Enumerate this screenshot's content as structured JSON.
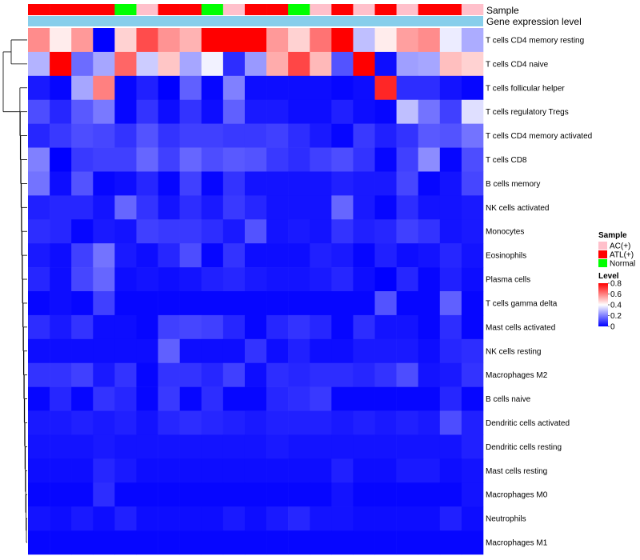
{
  "chart_data": {
    "type": "heatmap",
    "annotation_titles": {
      "sample": "Sample",
      "expression": "Gene expression level"
    },
    "column_samples": [
      "ATL(+)",
      "ATL(+)",
      "ATL(+)",
      "ATL(+)",
      "Normal",
      "AC(+)",
      "ATL(+)",
      "ATL(+)",
      "Normal",
      "AC(+)",
      "ATL(+)",
      "ATL(+)",
      "Normal",
      "AC(+)",
      "ATL(+)",
      "AC(+)",
      "ATL(+)",
      "AC(+)",
      "ATL(+)",
      "ATL(+)",
      "AC(+)"
    ],
    "rows": [
      "T cells CD4 memory resting",
      "T cells CD4 naive",
      "T cells follicular helper",
      "T cells regulatory  Tregs",
      "T cells CD4 memory activated",
      "T cells CD8",
      "B cells memory",
      "NK cells activated",
      "Monocytes",
      "Eosinophils",
      "Plasma cells",
      "T cells gamma delta",
      "Mast cells activated",
      "NK cells resting",
      "Macrophages M2",
      "B cells naive",
      "Dendritic cells activated",
      "Dendritic cells resting",
      "Mast cells resting",
      "Macrophages M0",
      "Neutrophils",
      "Macrophages M1"
    ],
    "values": [
      [
        0.58,
        0.43,
        0.56,
        0.0,
        0.47,
        0.68,
        0.57,
        0.52,
        0.8,
        0.8,
        0.8,
        0.56,
        0.47,
        0.62,
        0.8,
        0.3,
        0.43,
        0.55,
        0.58,
        0.37,
        0.27
      ],
      [
        0.28,
        0.8,
        0.17,
        0.26,
        0.64,
        0.32,
        0.49,
        0.26,
        0.38,
        0.07,
        0.24,
        0.53,
        0.69,
        0.51,
        0.13,
        0.8,
        0.02,
        0.25,
        0.26,
        0.5,
        0.47
      ],
      [
        0.04,
        0.01,
        0.26,
        0.6,
        0.01,
        0.05,
        0.0,
        0.15,
        0.01,
        0.2,
        0.02,
        0.02,
        0.02,
        0.02,
        0.01,
        0.02,
        0.74,
        0.07,
        0.07,
        0.03,
        0.01
      ],
      [
        0.12,
        0.06,
        0.14,
        0.19,
        0.01,
        0.08,
        0.02,
        0.08,
        0.02,
        0.15,
        0.04,
        0.04,
        0.02,
        0.02,
        0.05,
        0.02,
        0.01,
        0.3,
        0.18,
        0.1,
        0.35
      ],
      [
        0.06,
        0.09,
        0.12,
        0.11,
        0.08,
        0.13,
        0.08,
        0.1,
        0.1,
        0.09,
        0.09,
        0.1,
        0.07,
        0.04,
        0.01,
        0.09,
        0.05,
        0.08,
        0.14,
        0.13,
        0.18
      ],
      [
        0.2,
        0.0,
        0.09,
        0.1,
        0.1,
        0.16,
        0.1,
        0.16,
        0.12,
        0.14,
        0.13,
        0.09,
        0.07,
        0.1,
        0.12,
        0.08,
        0.01,
        0.1,
        0.22,
        0.01,
        0.12
      ],
      [
        0.18,
        0.02,
        0.13,
        0.01,
        0.02,
        0.06,
        0.01,
        0.1,
        0.01,
        0.08,
        0.03,
        0.03,
        0.03,
        0.03,
        0.05,
        0.04,
        0.04,
        0.11,
        0.01,
        0.03,
        0.11
      ],
      [
        0.05,
        0.06,
        0.06,
        0.03,
        0.16,
        0.08,
        0.03,
        0.07,
        0.04,
        0.09,
        0.06,
        0.03,
        0.03,
        0.03,
        0.16,
        0.04,
        0.01,
        0.07,
        0.03,
        0.03,
        0.04
      ],
      [
        0.07,
        0.06,
        0.01,
        0.04,
        0.03,
        0.1,
        0.09,
        0.09,
        0.07,
        0.04,
        0.13,
        0.03,
        0.04,
        0.03,
        0.08,
        0.05,
        0.06,
        0.1,
        0.08,
        0.03,
        0.04
      ],
      [
        0.04,
        0.02,
        0.1,
        0.18,
        0.04,
        0.02,
        0.06,
        0.12,
        0.01,
        0.08,
        0.02,
        0.02,
        0.02,
        0.05,
        0.04,
        0.01,
        0.05,
        0.02,
        0.03,
        0.06,
        0.03
      ],
      [
        0.06,
        0.02,
        0.11,
        0.16,
        0.02,
        0.03,
        0.02,
        0.03,
        0.05,
        0.06,
        0.04,
        0.03,
        0.03,
        0.04,
        0.06,
        0.02,
        0.0,
        0.06,
        0.01,
        0.05,
        0.02
      ],
      [
        0.01,
        0.02,
        0.01,
        0.1,
        0.01,
        0.01,
        0.01,
        0.01,
        0.01,
        0.01,
        0.01,
        0.01,
        0.01,
        0.01,
        0.01,
        0.01,
        0.13,
        0.01,
        0.01,
        0.15,
        0.01
      ],
      [
        0.07,
        0.04,
        0.08,
        0.02,
        0.02,
        0.01,
        0.1,
        0.11,
        0.1,
        0.06,
        0.01,
        0.06,
        0.08,
        0.06,
        0.01,
        0.07,
        0.03,
        0.03,
        0.01,
        0.07,
        0.01
      ],
      [
        0.02,
        0.02,
        0.02,
        0.02,
        0.02,
        0.02,
        0.15,
        0.02,
        0.02,
        0.02,
        0.08,
        0.02,
        0.05,
        0.02,
        0.02,
        0.04,
        0.04,
        0.04,
        0.02,
        0.06,
        0.07
      ],
      [
        0.08,
        0.08,
        0.1,
        0.04,
        0.08,
        0.01,
        0.08,
        0.08,
        0.06,
        0.1,
        0.02,
        0.07,
        0.06,
        0.07,
        0.07,
        0.06,
        0.08,
        0.12,
        0.03,
        0.04,
        0.08
      ],
      [
        0.01,
        0.06,
        0.01,
        0.08,
        0.06,
        0.01,
        0.09,
        0.01,
        0.07,
        0.01,
        0.01,
        0.06,
        0.07,
        0.09,
        0.01,
        0.01,
        0.01,
        0.01,
        0.01,
        0.06,
        0.01
      ],
      [
        0.04,
        0.04,
        0.05,
        0.04,
        0.05,
        0.03,
        0.06,
        0.07,
        0.06,
        0.05,
        0.04,
        0.05,
        0.05,
        0.05,
        0.04,
        0.05,
        0.04,
        0.05,
        0.04,
        0.12,
        0.05
      ],
      [
        0.03,
        0.03,
        0.03,
        0.04,
        0.03,
        0.03,
        0.03,
        0.03,
        0.03,
        0.03,
        0.03,
        0.04,
        0.03,
        0.03,
        0.03,
        0.03,
        0.03,
        0.03,
        0.03,
        0.03,
        0.05
      ],
      [
        0.02,
        0.02,
        0.02,
        0.06,
        0.04,
        0.02,
        0.02,
        0.02,
        0.02,
        0.02,
        0.02,
        0.02,
        0.02,
        0.02,
        0.05,
        0.02,
        0.02,
        0.04,
        0.04,
        0.02,
        0.03
      ],
      [
        0.01,
        0.01,
        0.01,
        0.07,
        0.01,
        0.01,
        0.01,
        0.01,
        0.01,
        0.01,
        0.01,
        0.01,
        0.01,
        0.01,
        0.03,
        0.01,
        0.01,
        0.01,
        0.01,
        0.01,
        0.03
      ],
      [
        0.03,
        0.02,
        0.04,
        0.02,
        0.05,
        0.02,
        0.02,
        0.02,
        0.02,
        0.04,
        0.02,
        0.04,
        0.06,
        0.03,
        0.03,
        0.02,
        0.02,
        0.02,
        0.02,
        0.05,
        0.02
      ],
      [
        0.01,
        0.01,
        0.01,
        0.01,
        0.01,
        0.01,
        0.01,
        0.01,
        0.01,
        0.01,
        0.01,
        0.01,
        0.01,
        0.01,
        0.01,
        0.01,
        0.01,
        0.01,
        0.01,
        0.01,
        0.01
      ]
    ],
    "legend": {
      "sample_title": "Sample",
      "sample_items": [
        {
          "label": "AC(+)",
          "color": "#ffc0cb"
        },
        {
          "label": "ATL(+)",
          "color": "#ff0000"
        },
        {
          "label": "Normal",
          "color": "#00ff00"
        }
      ],
      "level_title": "Level",
      "level_ticks": [
        "0.8",
        "0.6",
        "0.4",
        "0.2",
        "0"
      ],
      "level_range": [
        0,
        0.8
      ]
    },
    "colors": {
      "low": "#0000ff",
      "mid": "#ffffff",
      "high": "#ff0000",
      "expression_bar": "#87ceeb"
    }
  }
}
